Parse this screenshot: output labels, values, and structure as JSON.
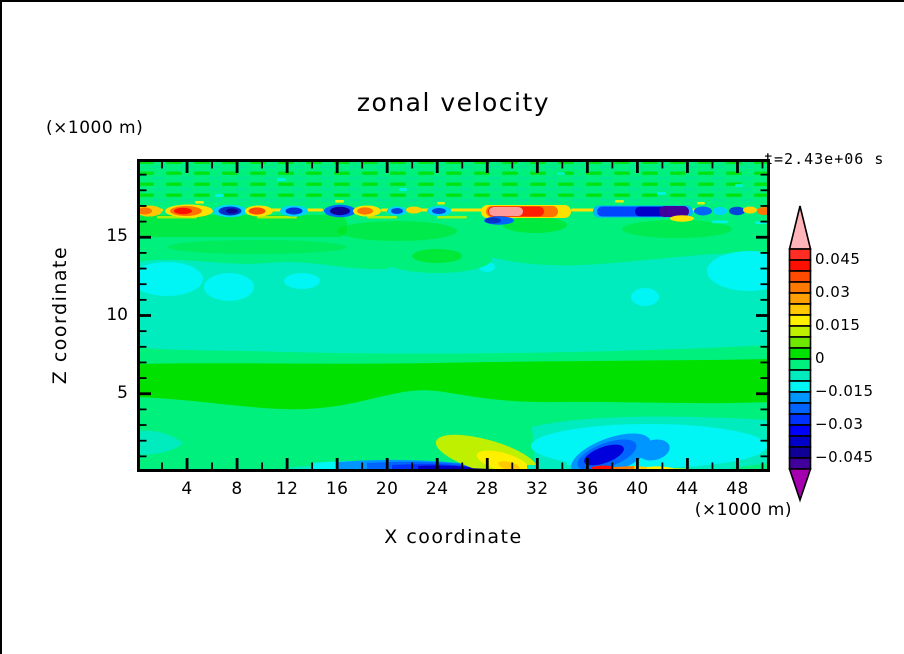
{
  "header": {
    "title": "zonal velocity"
  },
  "annotations": {
    "time": "t=2.43e+06 s",
    "y_axis_unit": "(×1000 m)",
    "x_axis_unit": "(×1000 m)"
  },
  "axes": {
    "x": {
      "label": "X coordinate",
      "min": 0,
      "max": 50.6,
      "tick_values": [
        4,
        8,
        12,
        16,
        20,
        24,
        28,
        32,
        36,
        40,
        44,
        48
      ],
      "tick_labels": [
        "4",
        "8",
        "12",
        "16",
        "20",
        "24",
        "28",
        "32",
        "36",
        "40",
        "44",
        "48"
      ],
      "minor_tick_values": [
        2,
        6,
        10,
        14,
        18,
        22,
        26,
        30,
        34,
        38,
        42,
        46,
        50
      ]
    },
    "z": {
      "label": "Z coordinate",
      "min": 0,
      "max": 20,
      "tick_values": [
        5,
        10,
        15
      ],
      "tick_labels": [
        "5",
        "10",
        "15"
      ],
      "minor_tick_values": [
        1,
        2,
        3,
        4,
        6,
        7,
        8,
        9,
        11,
        12,
        13,
        14,
        16,
        17,
        18,
        19
      ]
    }
  },
  "colorbar": {
    "labels": [
      "0.045",
      "0.03",
      "0.015",
      "0",
      "−0.015",
      "−0.03",
      "−0.045"
    ],
    "label_values": [
      0.045,
      0.03,
      0.015,
      0,
      -0.015,
      -0.03,
      -0.045
    ],
    "segment_step": 0.005,
    "range": [
      -0.05,
      0.05
    ],
    "over_color": "#ffb4b9",
    "under_color": "#a500af",
    "segment_colors_top_to_bottom": [
      "#ff2d23",
      "#ff0f00",
      "#ff4b00",
      "#ff7800",
      "#ffa000",
      "#ffc800",
      "#fff000",
      "#bef000",
      "#6ee600",
      "#00e100",
      "#00f07d",
      "#00ebbe",
      "#00f5f5",
      "#0096ff",
      "#0064ff",
      "#0032ff",
      "#0000ff",
      "#0000c8",
      "#0f0096",
      "#41009b"
    ]
  },
  "chart_data": {
    "type": "heatmap",
    "title": "zonal velocity",
    "xlabel": "X coordinate (×1000 m)",
    "ylabel": "Z coordinate (×1000 m)",
    "x_range": [
      0,
      50.6
    ],
    "z_range": [
      0,
      20
    ],
    "time_annotation": "t=2.43e+06 s",
    "contour_interval": 0.005,
    "value_range": [
      -0.05,
      0.05
    ],
    "labeled_levels": [
      0.045,
      0.03,
      0.015,
      0,
      -0.015,
      -0.03,
      -0.045
    ],
    "background_value_band": [
      -0.005,
      0
    ],
    "features": [
      {
        "name": "speckled-layer",
        "z": [
          17.2,
          20
        ],
        "x": [
          0,
          50.6
        ],
        "value": "small-scale checkerboard of 0 to +0.005 cells on -0.005 background"
      },
      {
        "name": "critical-layer-wave-train",
        "z": [
          16.2,
          17.0
        ],
        "x": [
          0,
          50.6
        ],
        "value": "alternating strong cells reaching beyond ±0.045",
        "cells": [
          {
            "x": 1,
            "sign": "+"
          },
          {
            "x": 4,
            "sign": "+",
            "core": 0.05
          },
          {
            "x": 7.5,
            "sign": "-",
            "core": -0.05
          },
          {
            "x": 9.8,
            "sign": "+"
          },
          {
            "x": 12.6,
            "sign": "-"
          },
          {
            "x": 16.3,
            "sign": "-",
            "core": -0.05
          },
          {
            "x": 18.6,
            "sign": "+"
          },
          {
            "x": 21,
            "sign": "-"
          },
          {
            "x": 22.6,
            "sign": "+"
          },
          {
            "x": 24.7,
            "sign": "-"
          },
          {
            "x_span": [
              28,
              34.5
            ],
            "sign": "+",
            "core": "> 0.05 (pink)"
          },
          {
            "x_span": [
              37,
              43.5
            ],
            "sign": "-",
            "core": "< -0.05 (purple)"
          },
          {
            "x": 45.2,
            "sign": "-"
          },
          {
            "x": 47,
            "sign": "-"
          },
          {
            "x": 49,
            "sign": "+"
          }
        ]
      },
      {
        "name": "cyan-band",
        "z": [
          8,
          13.5
        ],
        "x": [
          0,
          50.6
        ],
        "value": [
          -0.015,
          -0.005
        ]
      },
      {
        "name": "green-band",
        "z": [
          4.5,
          6.8
        ],
        "x": [
          0,
          50.6
        ],
        "value": [
          0,
          0.005
        ]
      },
      {
        "name": "bottom-negative-jet",
        "z": [
          0,
          1
        ],
        "x": [
          17,
          29.5
        ],
        "value": "down to < -0.045; magenta sliver ≈ -0.05 near x=28.5"
      },
      {
        "name": "chartreuse-updraft",
        "z": [
          0,
          2.2
        ],
        "x": [
          24,
          31
        ],
        "value": [
          0.015,
          0.025
        ]
      },
      {
        "name": "bottom-negative-eddy",
        "z": [
          0.3,
          2.8
        ],
        "x": [
          35,
          40
        ],
        "value": "core < -0.04"
      },
      {
        "name": "bottom-positive-streak",
        "z": [
          0,
          0.5
        ],
        "x": [
          36.5,
          45
        ],
        "value": [
          0.015,
          0.05
        ]
      },
      {
        "name": "cyan-pool",
        "z": [
          0,
          3.2
        ],
        "x": [
          32,
          50.6
        ],
        "value": [
          -0.015,
          -0.01
        ]
      }
    ]
  }
}
